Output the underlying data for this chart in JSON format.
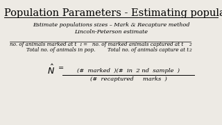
{
  "title": "Population Parameters - Estimating populations sizes",
  "bg_color": "#edeae4",
  "title_fontsize": 10.5,
  "subtitle1": "Estimate populations sizes – Mark & Recapture method",
  "subtitle2": "Lincoln-Peterson estimate",
  "subtitle_fontsize": 5.8,
  "fraction_top_left": "no. of animals marked at t",
  "fraction_top_right": "=   no. of marked animals captured at t",
  "fraction_bot_left": "Total no. of animals in pop.",
  "fraction_bot_right": "Total no. of animals capture at t",
  "eq_fontsize": 5.2,
  "sub1": "1",
  "sub2_top": "2",
  "sub2_bot": "2",
  "num_text": "(#  marked  )(#  in  2 nd  sample  )",
  "den_text": "(#  recaptured     marks  )",
  "formula_fontsize": 6.0,
  "nhat_fontsize": 9
}
